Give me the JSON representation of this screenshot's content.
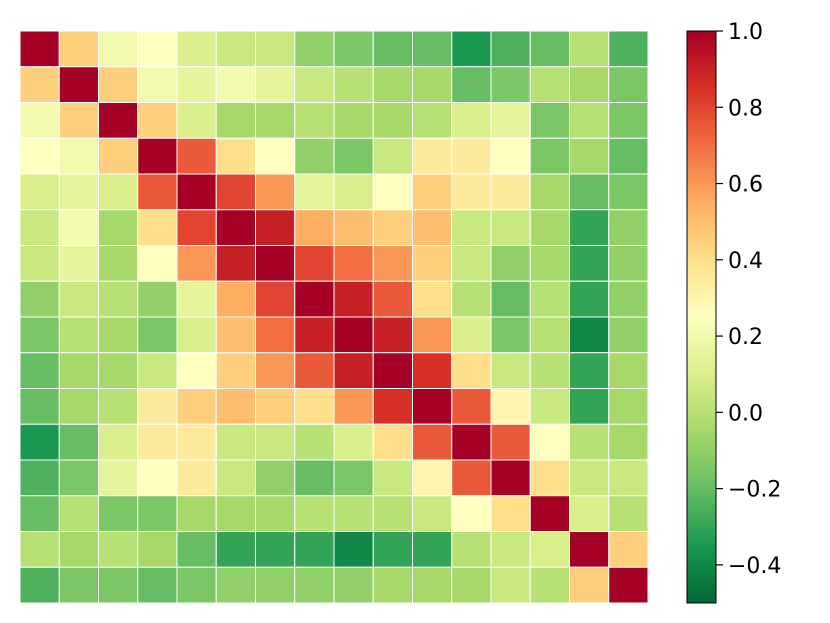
{
  "chart_data": {
    "type": "heatmap",
    "title": "",
    "xlabel": "",
    "ylabel": "",
    "rows": 16,
    "cols": 16,
    "colormap": "RdYlGn_r",
    "value_range": [
      -0.5,
      1.0
    ],
    "grid_line_color": "#ffffff",
    "values": [
      [
        1.0,
        0.45,
        0.2,
        0.25,
        0.1,
        0.05,
        0.05,
        -0.1,
        -0.15,
        -0.2,
        -0.2,
        -0.35,
        -0.25,
        -0.2,
        0.0,
        -0.25
      ],
      [
        0.45,
        1.0,
        0.45,
        0.2,
        0.15,
        0.2,
        0.15,
        0.05,
        0.0,
        -0.05,
        -0.05,
        -0.2,
        -0.15,
        0.0,
        -0.05,
        -0.15
      ],
      [
        0.2,
        0.45,
        1.0,
        0.45,
        0.1,
        -0.05,
        -0.05,
        0.0,
        -0.05,
        -0.05,
        0.0,
        0.1,
        0.15,
        -0.15,
        0.0,
        -0.15
      ],
      [
        0.25,
        0.2,
        0.45,
        1.0,
        0.75,
        0.4,
        0.25,
        -0.1,
        -0.15,
        0.05,
        0.35,
        0.35,
        0.25,
        -0.15,
        -0.05,
        -0.2
      ],
      [
        0.1,
        0.15,
        0.1,
        0.75,
        1.0,
        0.8,
        0.6,
        0.15,
        0.1,
        0.25,
        0.45,
        0.35,
        0.35,
        -0.05,
        -0.2,
        -0.15
      ],
      [
        0.05,
        0.2,
        -0.05,
        0.4,
        0.8,
        1.0,
        0.9,
        0.55,
        0.5,
        0.45,
        0.5,
        0.05,
        0.05,
        -0.05,
        -0.3,
        -0.1
      ],
      [
        0.05,
        0.15,
        -0.05,
        0.25,
        0.6,
        0.9,
        1.0,
        0.8,
        0.7,
        0.6,
        0.45,
        0.05,
        -0.1,
        -0.05,
        -0.3,
        -0.1
      ],
      [
        -0.1,
        0.05,
        0.0,
        -0.1,
        0.15,
        0.55,
        0.8,
        1.0,
        0.9,
        0.75,
        0.4,
        0.0,
        -0.2,
        0.0,
        -0.3,
        -0.1
      ],
      [
        -0.15,
        0.0,
        -0.05,
        -0.15,
        0.1,
        0.5,
        0.7,
        0.9,
        1.0,
        0.9,
        0.6,
        0.1,
        -0.15,
        0.0,
        -0.4,
        -0.1
      ],
      [
        -0.2,
        -0.05,
        -0.05,
        0.05,
        0.25,
        0.45,
        0.6,
        0.75,
        0.9,
        1.0,
        0.85,
        0.4,
        0.05,
        0.0,
        -0.3,
        -0.05
      ],
      [
        -0.2,
        -0.05,
        0.0,
        0.35,
        0.45,
        0.5,
        0.45,
        0.4,
        0.6,
        0.85,
        1.0,
        0.75,
        0.3,
        0.05,
        -0.3,
        -0.05
      ],
      [
        -0.35,
        -0.2,
        0.1,
        0.35,
        0.35,
        0.05,
        0.05,
        0.0,
        0.1,
        0.4,
        0.75,
        1.0,
        0.75,
        0.25,
        0.0,
        -0.05
      ],
      [
        -0.25,
        -0.15,
        0.15,
        0.25,
        0.35,
        0.05,
        -0.1,
        -0.2,
        -0.15,
        0.05,
        0.3,
        0.75,
        1.0,
        0.4,
        0.05,
        0.05
      ],
      [
        -0.2,
        0.0,
        -0.15,
        -0.15,
        -0.05,
        -0.05,
        -0.05,
        0.0,
        0.0,
        0.0,
        0.05,
        0.25,
        0.4,
        1.0,
        0.1,
        0.0
      ],
      [
        0.0,
        -0.05,
        0.0,
        -0.05,
        -0.2,
        -0.3,
        -0.3,
        -0.3,
        -0.4,
        -0.3,
        -0.3,
        0.0,
        0.05,
        0.1,
        1.0,
        0.45
      ],
      [
        -0.25,
        -0.15,
        -0.15,
        -0.2,
        -0.15,
        -0.1,
        -0.1,
        -0.1,
        -0.1,
        -0.05,
        -0.05,
        -0.05,
        0.05,
        0.0,
        0.45,
        1.0
      ]
    ],
    "colorbar": {
      "ticks": [
        -0.4,
        -0.2,
        0.0,
        0.2,
        0.4,
        0.6,
        0.8,
        1.0
      ],
      "tick_labels": [
        "−0.4",
        "−0.2",
        "0.0",
        "0.2",
        "0.4",
        "0.6",
        "0.8",
        "1.0"
      ],
      "location": "right"
    }
  }
}
